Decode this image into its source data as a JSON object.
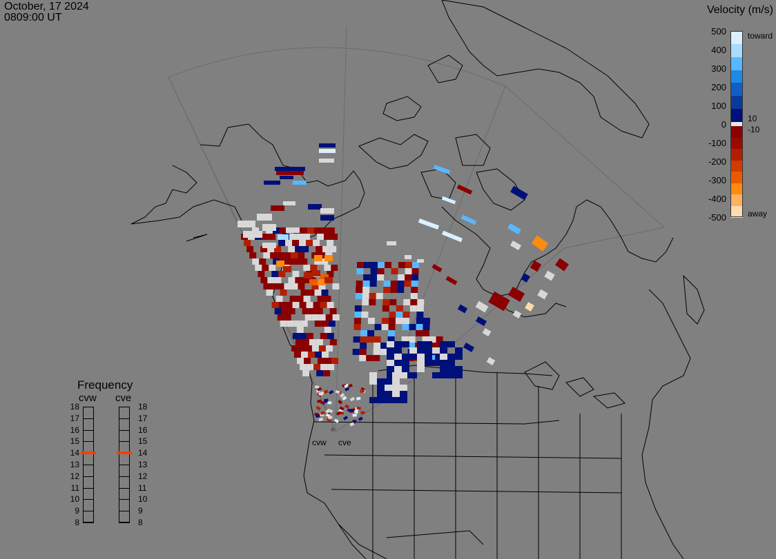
{
  "header": {
    "date": "October, 17 2024",
    "time": "0809:00 UT"
  },
  "velocity_legend": {
    "title": "Velocity (m/s)",
    "ticks": [
      "500",
      "400",
      "300",
      "200",
      "100",
      "0",
      "-100",
      "-200",
      "-300",
      "-400",
      "-500"
    ],
    "positive_threshold": "10",
    "negative_threshold": "-10",
    "toward_label": "toward",
    "away_label": "away",
    "colors_toward": [
      "#dbf0ff",
      "#a8dcff",
      "#58b8ff",
      "#1e8ae6",
      "#1060c4",
      "#0a3a9a",
      "#00107a"
    ],
    "colors_away": [
      "#8a0000",
      "#9a0a00",
      "#b41e00",
      "#d23a00",
      "#ec5a00",
      "#ff8a10",
      "#ffb060",
      "#ffdcb0"
    ],
    "gap_color": "#e6e6e6"
  },
  "frequency_panel": {
    "title": "Frequency",
    "radars": [
      {
        "name": "cvw",
        "value_mhz": 14
      },
      {
        "name": "cve",
        "value_mhz": 14
      }
    ],
    "ticks": [
      "18",
      "17",
      "16",
      "15",
      "14",
      "13",
      "12",
      "11",
      "10",
      "9",
      "8"
    ],
    "indicator_color": "#ff3c00"
  },
  "map": {
    "background": "#808080",
    "coastline_color": "#000000",
    "fov_outline_color": "#6a6a6a",
    "radar_site_labels": [
      "cvw",
      "cve"
    ],
    "velocity_cells_note": ""
  }
}
